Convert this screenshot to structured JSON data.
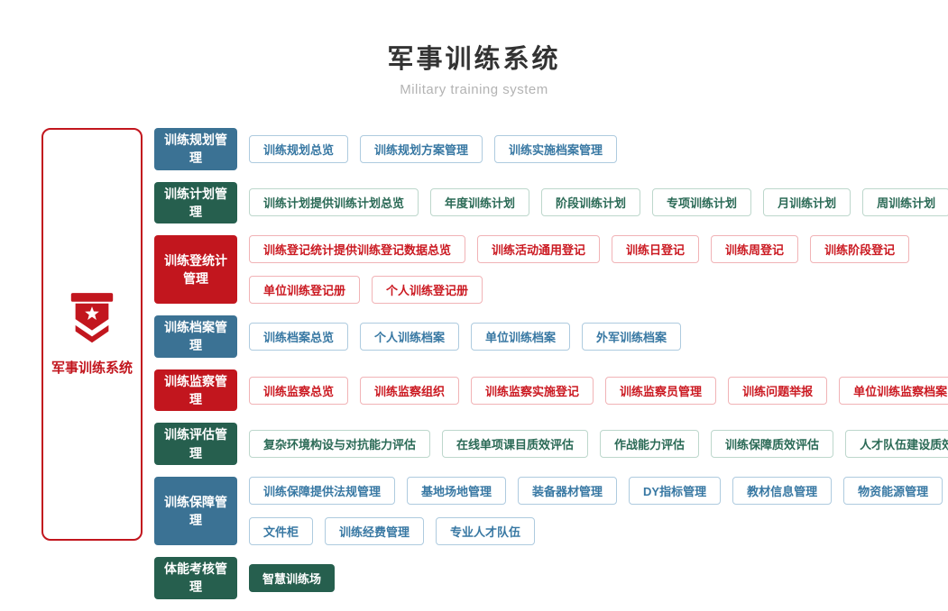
{
  "page": {
    "title": "军事训练系统",
    "subtitle": "Military training system"
  },
  "sidebar": {
    "label": "军事训练系统",
    "icon": "shield-star-icon"
  },
  "colors": {
    "blue": "#3b7294",
    "green": "#265f4e",
    "red": "#c2161e",
    "blue_text": "#3878a3",
    "green_text": "#2b6a56",
    "red_text": "#cb1a22",
    "blue_light_border": "#aecbdf",
    "green_light_border": "#bdd7cc",
    "red_light_border": "#f1b3b6",
    "title_text": "#333333",
    "subtitle_text": "#b3b3b3"
  },
  "rows": [
    {
      "id": "planning",
      "color": "blue",
      "category": "训练规划管理",
      "lines": [
        [
          "训练规划总览",
          "训练规划方案管理",
          "训练实施档案管理"
        ]
      ]
    },
    {
      "id": "plan",
      "color": "green",
      "category": "训练计划管理",
      "lines": [
        [
          "训练计划提供训练计划总览",
          "年度训练计划",
          "阶段训练计划",
          "专项训练计划",
          "月训练计划",
          "周训练计划"
        ]
      ]
    },
    {
      "id": "registration-stats",
      "color": "red",
      "category": "训练登统计管理",
      "lines": [
        [
          "训练登记统计提供训练登记数据总览",
          "训练活动通用登记",
          "训练日登记",
          "训练周登记",
          "训练阶段登记"
        ],
        [
          "单位训练登记册",
          "个人训练登记册"
        ]
      ]
    },
    {
      "id": "archives",
      "color": "blue",
      "category": "训练档案管理",
      "lines": [
        [
          "训练档案总览",
          "个人训练档案",
          "单位训练档案",
          "外军训练档案"
        ]
      ]
    },
    {
      "id": "supervision",
      "color": "red",
      "category": "训练监察管理",
      "lines": [
        [
          "训练监察总览",
          "训练监察组织",
          "训练监察实施登记",
          "训练监察员管理",
          "训练问题举报",
          "单位训练监察档案"
        ]
      ]
    },
    {
      "id": "evaluation",
      "color": "green",
      "category": "训练评估管理",
      "lines": [
        [
          "复杂环境构设与对抗能力评估",
          "在线单项课目质效评估",
          "作战能力评估",
          "训练保障质效评估",
          "人才队伍建设质效评估"
        ]
      ]
    },
    {
      "id": "support",
      "color": "blue",
      "category": "训练保障管理",
      "lines": [
        [
          "训练保障提供法规管理",
          "基地场地管理",
          "装备器材管理",
          "DY指标管理",
          "教材信息管理",
          "物资能源管理"
        ],
        [
          "文件柜",
          "训练经费管理",
          "专业人才队伍"
        ]
      ]
    },
    {
      "id": "physical-assessment",
      "color": "green",
      "category": "体能考核管理",
      "items_solid": true,
      "lines": [
        [
          "智慧训练场"
        ]
      ]
    }
  ]
}
